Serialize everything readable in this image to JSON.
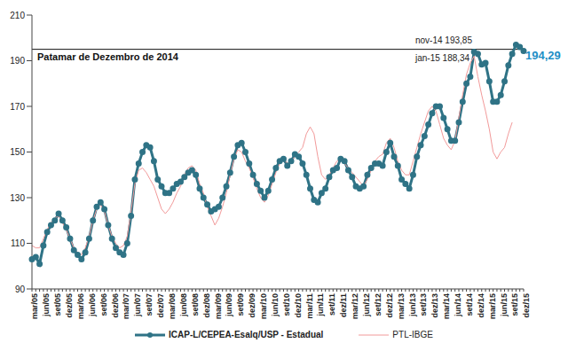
{
  "chart_data": {
    "type": "line",
    "categories": [
      "mar/05",
      null,
      null,
      "jun/05",
      null,
      null,
      "set/05",
      null,
      null,
      "dez/05",
      null,
      null,
      "mar/06",
      null,
      null,
      "jun/06",
      null,
      null,
      "set/06",
      null,
      null,
      "dez/06",
      null,
      null,
      "mar/07",
      null,
      null,
      "jun/07",
      null,
      null,
      "set/07",
      null,
      null,
      "dez/07",
      null,
      null,
      "mar/08",
      null,
      null,
      "jun/08",
      null,
      null,
      "set/08",
      null,
      null,
      "dez/08",
      null,
      null,
      "mar/09",
      null,
      null,
      "jun/09",
      null,
      null,
      "set/09",
      null,
      null,
      "dez/09",
      null,
      null,
      "mar/10",
      null,
      null,
      "jun/10",
      null,
      null,
      "set/10",
      null,
      null,
      "dez/10",
      null,
      null,
      "mar/11",
      null,
      null,
      "jun/11",
      null,
      null,
      "set/11",
      null,
      null,
      "dez/11",
      null,
      null,
      "mar/12",
      null,
      null,
      "jun/12",
      null,
      null,
      "set/12",
      null,
      null,
      "dez/12",
      null,
      null,
      "mar/13",
      null,
      null,
      "jun/13",
      null,
      null,
      "set/13",
      null,
      null,
      "dez/13",
      null,
      null,
      "mar/14",
      null,
      null,
      "jun/14",
      null,
      null,
      "set/14",
      null,
      null,
      "dez/14",
      null,
      null,
      "mar/15",
      null,
      null,
      "jun/15",
      null,
      null,
      "set/15",
      null,
      null,
      "dez/15"
    ],
    "series": [
      {
        "name": "ICAP-L/CEPEA-Esalq/USP - Estadual",
        "color": "#2f7386",
        "marker": "circle",
        "values": [
          103,
          104,
          101,
          109,
          115,
          118,
          120,
          123,
          120,
          117,
          112,
          107,
          105,
          103,
          106,
          112,
          120,
          126,
          128,
          125,
          118,
          112,
          108,
          106,
          105,
          110,
          122,
          138,
          145,
          150,
          153,
          152,
          146,
          138,
          135,
          132,
          132,
          134,
          136,
          137,
          139,
          141,
          142,
          140,
          134,
          130,
          127,
          124,
          125,
          126,
          130,
          135,
          141,
          148,
          153,
          154,
          150,
          145,
          140,
          136,
          133,
          130,
          133,
          138,
          143,
          146,
          147,
          144,
          146,
          149,
          148,
          145,
          140,
          134,
          129,
          128,
          132,
          134,
          139,
          142,
          143,
          147,
          146,
          142,
          139,
          135,
          134,
          135,
          140,
          143,
          145,
          145,
          144,
          150,
          154,
          148,
          144,
          138,
          136,
          134,
          140,
          148,
          153,
          157,
          162,
          167,
          170,
          170,
          165,
          160,
          155,
          155,
          163,
          172,
          180,
          183,
          193.85,
          193,
          188.34,
          189,
          181,
          172,
          172,
          175,
          181,
          188,
          193,
          197,
          196,
          194.29
        ]
      },
      {
        "name": "PTL-IBGE",
        "color": "#f29a9a",
        "values": [
          109,
          108,
          108,
          112,
          116,
          119,
          121,
          122,
          119,
          116,
          112,
          108,
          106,
          105,
          108,
          113,
          120,
          125,
          127,
          124,
          118,
          113,
          110,
          108,
          109,
          113,
          124,
          136,
          142,
          143,
          141,
          138,
          135,
          130,
          125,
          123,
          125,
          128,
          132,
          135,
          140,
          143,
          144,
          142,
          136,
          132,
          126,
          122,
          118,
          121,
          126,
          132,
          140,
          147,
          151,
          150,
          146,
          143,
          139,
          134,
          130,
          128,
          131,
          136,
          141,
          145,
          147,
          145,
          146,
          148,
          150,
          152,
          158,
          161,
          158,
          148,
          140,
          138,
          140,
          143,
          146,
          147,
          145,
          143,
          141,
          139,
          137,
          135,
          138,
          142,
          146,
          148,
          149,
          154,
          156,
          152,
          146,
          142,
          140,
          140,
          146,
          152,
          158,
          163,
          168,
          170,
          168,
          162,
          156,
          153,
          151,
          155,
          165,
          175,
          184,
          189,
          192,
          183,
          175,
          168,
          160,
          150,
          147,
          150,
          152,
          158,
          163,
          null,
          null,
          null
        ]
      }
    ],
    "ylim": [
      90,
      210
    ],
    "yticks": [
      90,
      110,
      130,
      150,
      170,
      190,
      210
    ],
    "grid": false,
    "legend": "bottom",
    "reference_line": {
      "value": 195,
      "label": "Patamar de Dezembro de 2014"
    },
    "annotations": [
      "nov-14 193,85",
      "jan-15 188,34",
      "194,29"
    ]
  }
}
